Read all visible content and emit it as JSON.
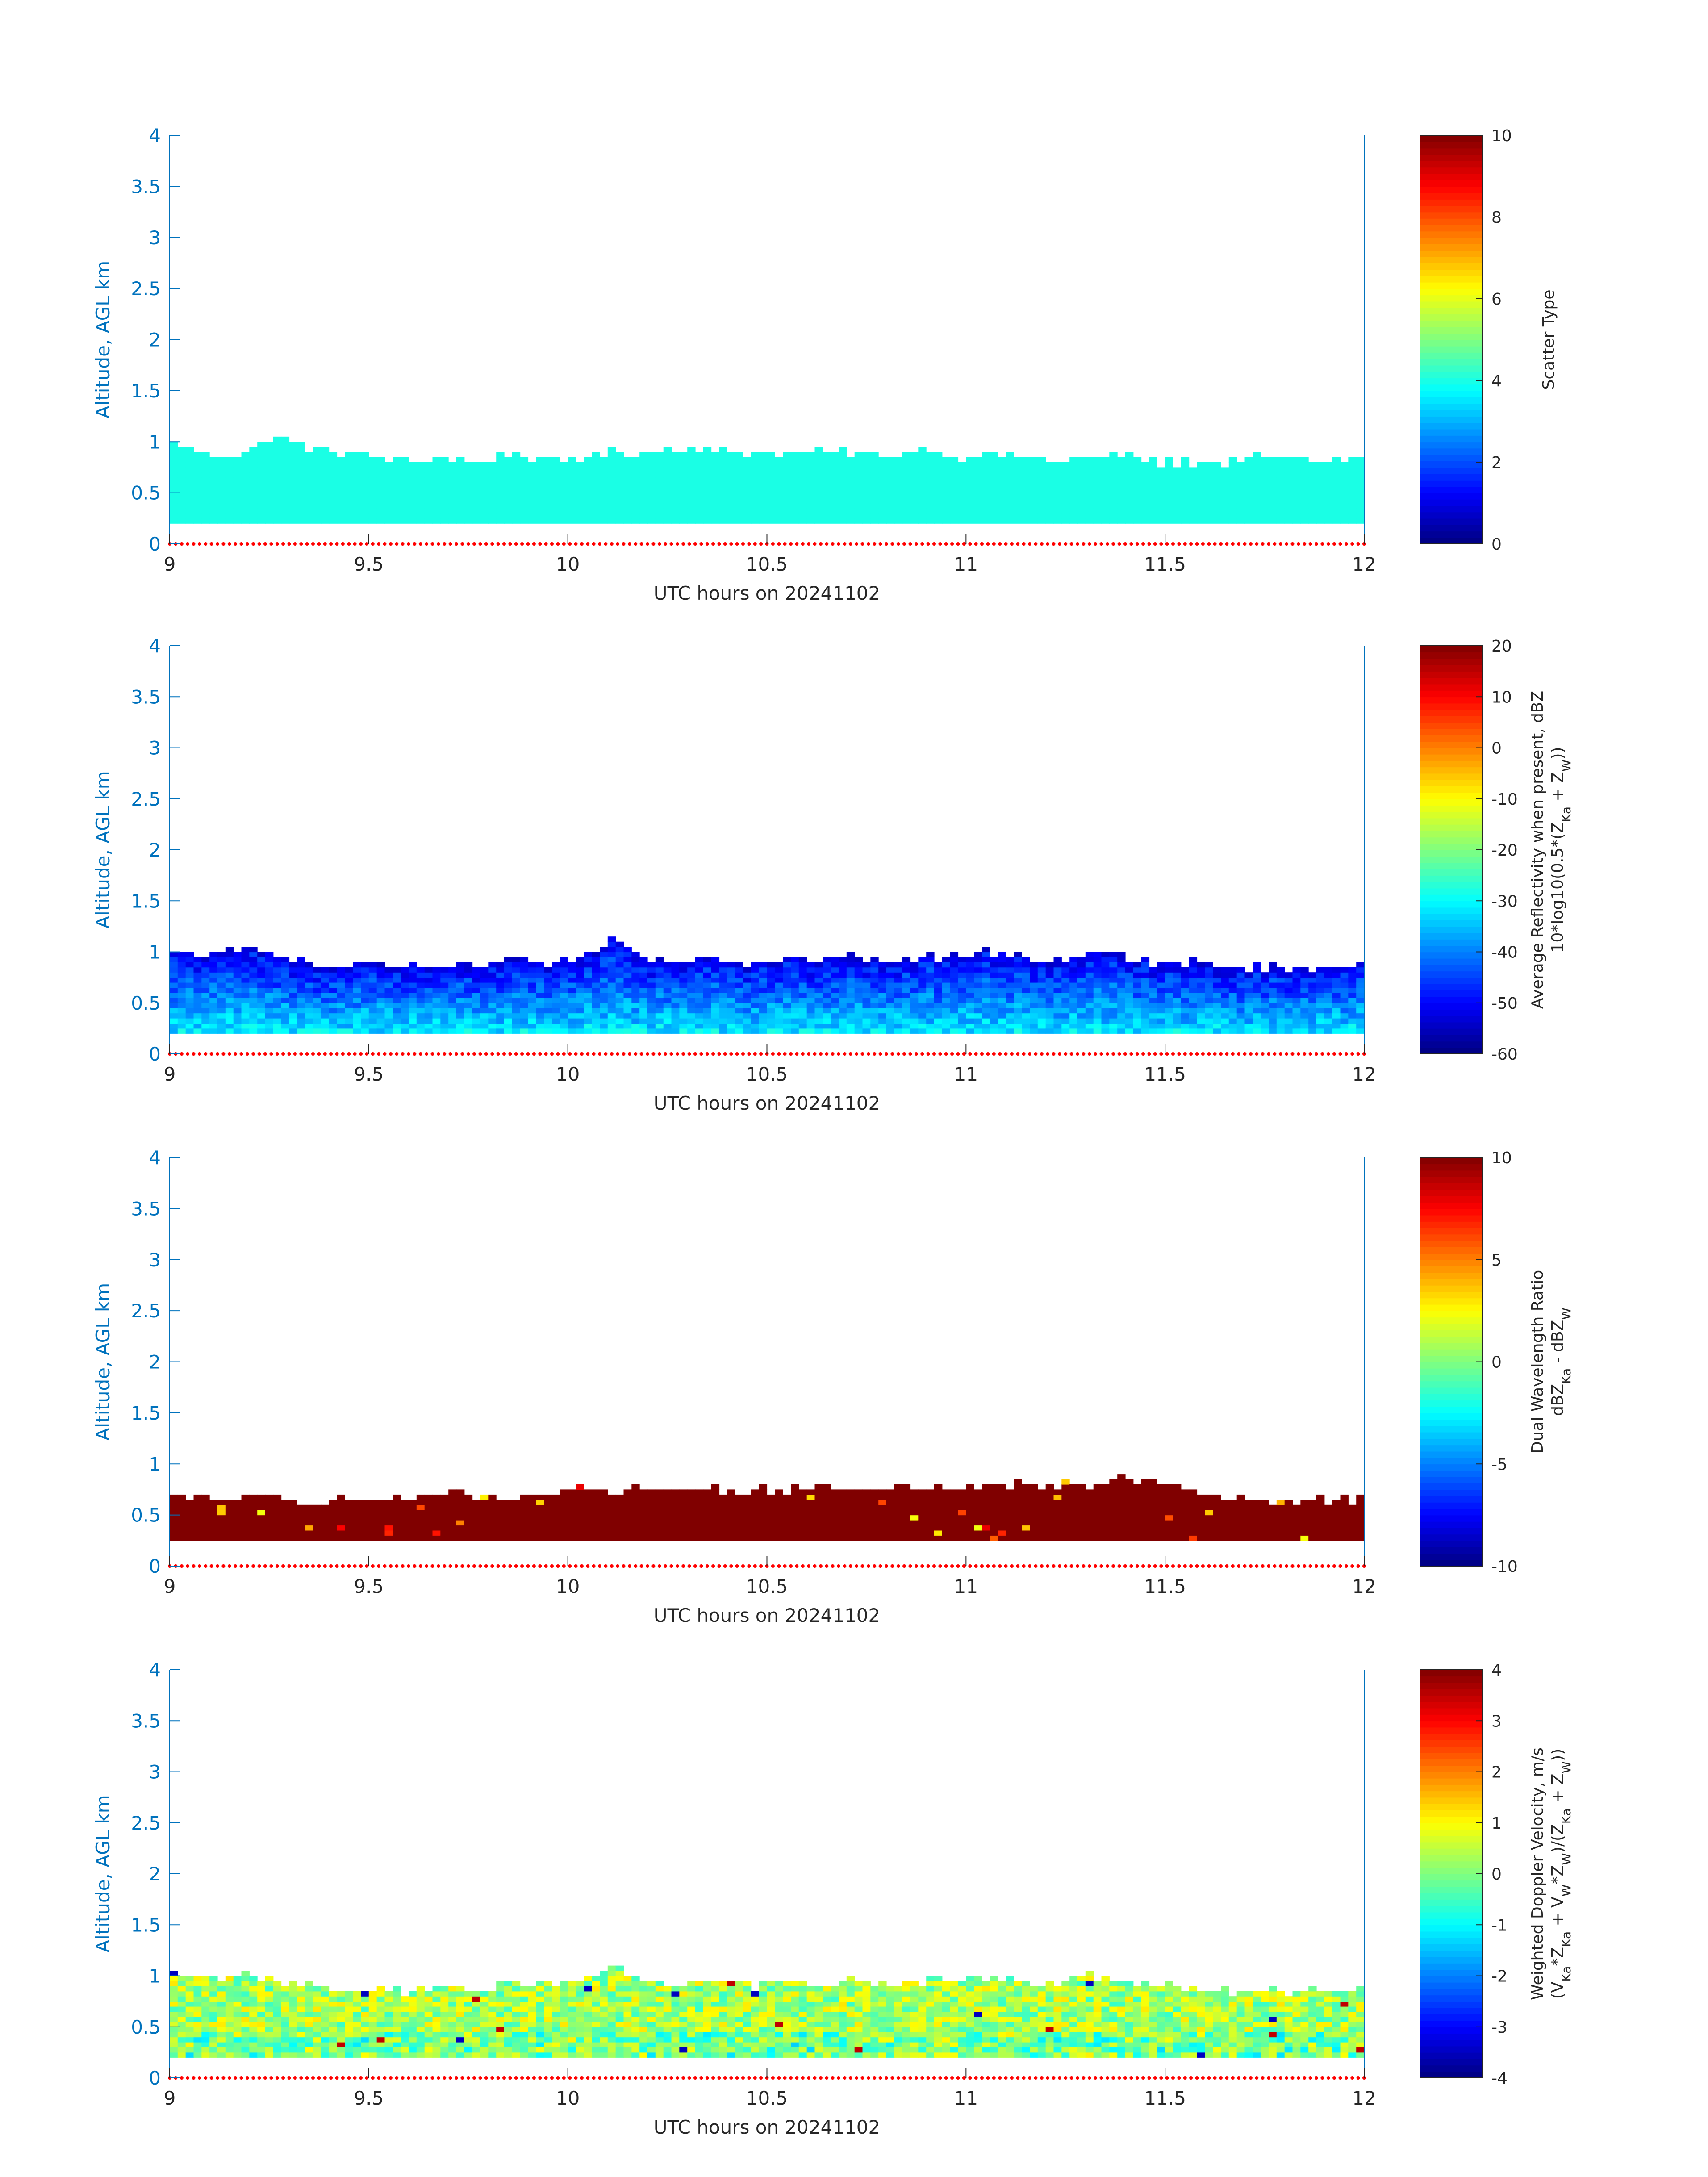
{
  "chart_data": [
    {
      "type": "heatmap",
      "id": "scatter-type",
      "xlabel": "UTC hours on 20241102",
      "ylabel": "Altitude, AGL km",
      "xlim": [
        9,
        12
      ],
      "ylim": [
        0,
        4
      ],
      "xticks": [
        "9",
        "9.5",
        "10",
        "10.5",
        "11",
        "11.5",
        "12"
      ],
      "yticks": [
        "0",
        "0.5",
        "1",
        "1.5",
        "2",
        "2.5",
        "3",
        "3.5",
        "4"
      ],
      "colorbar": {
        "label": "Scatter Type",
        "label_line2": "",
        "range": [
          0,
          10
        ],
        "ticks": [
          "0",
          "2",
          "4",
          "6",
          "8",
          "10"
        ],
        "colormap": "jet"
      },
      "layer": {
        "base_km": 0.2,
        "top_km_approx": [
          1.0,
          0.85,
          0.9,
          1.05,
          0.95,
          0.9,
          0.85,
          0.8,
          0.85,
          0.8,
          0.9,
          0.8,
          0.85,
          0.9,
          0.9,
          0.95,
          0.9,
          0.9,
          0.9,
          0.9,
          0.9,
          0.85,
          0.95,
          0.85,
          0.9,
          0.85,
          0.8,
          0.85,
          0.85,
          0.8,
          0.8,
          0.8,
          0.85,
          0.85,
          0.8,
          0.85
        ],
        "dominant_value": 4,
        "description": "uniform"
      }
    },
    {
      "type": "heatmap",
      "id": "avg-reflectivity",
      "xlabel": "UTC hours on 20241102",
      "ylabel": "Altitude, AGL km",
      "xlim": [
        9,
        12
      ],
      "ylim": [
        0,
        4
      ],
      "xticks": [
        "9",
        "9.5",
        "10",
        "10.5",
        "11",
        "11.5",
        "12"
      ],
      "yticks": [
        "0",
        "0.5",
        "1",
        "1.5",
        "2",
        "2.5",
        "3",
        "3.5",
        "4"
      ],
      "colorbar": {
        "label": "Average Reflectivity when present, dBZ",
        "label_line2": "10*log10(0.5*(Z_Ka + Z_W))",
        "range": [
          -60,
          20
        ],
        "ticks": [
          "-60",
          "-50",
          "-40",
          "-30",
          "-20",
          "-10",
          "0",
          "10",
          "20"
        ],
        "colormap": "jet"
      },
      "layer": {
        "base_km": 0.2,
        "top_km_approx": [
          1.0,
          0.95,
          1.05,
          0.95,
          0.9,
          0.85,
          0.85,
          0.85,
          0.9,
          0.85,
          0.95,
          0.9,
          0.95,
          1.1,
          0.95,
          0.9,
          0.95,
          0.9,
          0.95,
          0.9,
          0.95,
          0.9,
          0.95,
          0.95,
          1.0,
          0.95,
          0.9,
          1.0,
          0.95,
          0.9,
          0.9,
          0.85,
          0.85,
          0.85,
          0.85,
          0.9
        ],
        "value_range": [
          -52,
          -30
        ],
        "description": "noisy"
      }
    },
    {
      "type": "heatmap",
      "id": "dwr",
      "xlabel": "UTC hours on 20241102",
      "ylabel": "Altitude, AGL km",
      "xlim": [
        9,
        12
      ],
      "ylim": [
        0,
        4
      ],
      "xticks": [
        "9",
        "9.5",
        "10",
        "10.5",
        "11",
        "11.5",
        "12"
      ],
      "yticks": [
        "0",
        "0.5",
        "1",
        "1.5",
        "2",
        "2.5",
        "3",
        "3.5",
        "4"
      ],
      "colorbar": {
        "label": "Dual Wavelength Ratio",
        "label_line2": "dBZ_Ka - dBZ_W",
        "range": [
          -10,
          10
        ],
        "ticks": [
          "-10",
          "-5",
          "0",
          "5",
          "10"
        ],
        "colormap": "jet"
      },
      "layer": {
        "base_km": 0.25,
        "top_km_approx": [
          0.7,
          0.65,
          0.7,
          0.65,
          0.65,
          0.65,
          0.65,
          0.7,
          0.7,
          0.7,
          0.7,
          0.7,
          0.75,
          0.75,
          0.75,
          0.75,
          0.75,
          0.75,
          0.75,
          0.75,
          0.75,
          0.75,
          0.75,
          0.8,
          0.8,
          0.8,
          0.8,
          0.8,
          0.85,
          0.8,
          0.75,
          0.7,
          0.65,
          0.65,
          0.65,
          0.65
        ],
        "dominant_value": 10,
        "description": "saturated"
      }
    },
    {
      "type": "heatmap",
      "id": "doppler-velocity",
      "xlabel": "UTC hours on 20241102",
      "ylabel": "Altitude, AGL km",
      "xlim": [
        9,
        12
      ],
      "ylim": [
        0,
        4
      ],
      "xticks": [
        "9",
        "9.5",
        "10",
        "10.5",
        "11",
        "11.5",
        "12"
      ],
      "yticks": [
        "0",
        "0.5",
        "1",
        "1.5",
        "2",
        "2.5",
        "3",
        "3.5",
        "4"
      ],
      "colorbar": {
        "label": "Weighted Doppler Velocity, m/s",
        "label_line2": "(V_Ka*Z_Ka + V_W*Z_W)/(Z_Ka + Z_W))",
        "range": [
          -4,
          4
        ],
        "ticks": [
          "-4",
          "-3",
          "-2",
          "-1",
          "0",
          "1",
          "2",
          "3",
          "4"
        ],
        "colormap": "jet"
      },
      "layer": {
        "base_km": 0.2,
        "top_km_approx": [
          1.0,
          0.95,
          1.05,
          0.95,
          0.9,
          0.85,
          0.85,
          0.85,
          0.9,
          0.85,
          0.95,
          0.9,
          0.95,
          1.1,
          0.95,
          0.9,
          0.95,
          0.9,
          0.95,
          0.9,
          0.95,
          0.9,
          0.95,
          0.95,
          1.0,
          0.95,
          0.9,
          1.0,
          0.95,
          0.9,
          0.9,
          0.85,
          0.85,
          0.85,
          0.85,
          0.9
        ],
        "value_range": [
          -2,
          2
        ],
        "description": "noisy-velocity"
      }
    }
  ]
}
